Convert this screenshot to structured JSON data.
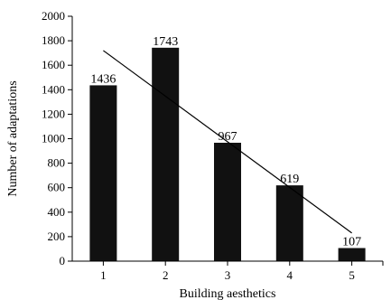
{
  "chart_data": {
    "type": "bar",
    "categories": [
      "1",
      "2",
      "3",
      "4",
      "5"
    ],
    "values": [
      1436,
      1743,
      967,
      619,
      107
    ],
    "data_labels": [
      "1436",
      "1743",
      "967",
      "619",
      "107"
    ],
    "xlabel": "Building aesthetics",
    "ylabel": "Number of adaptations",
    "ylim": [
      0,
      2000
    ],
    "yticks": [
      "0",
      "200",
      "400",
      "600",
      "800",
      "1000",
      "1200",
      "1400",
      "1600",
      "1800",
      "2000"
    ],
    "trendline": {
      "type": "linear",
      "from": {
        "x": 1,
        "y": 1720
      },
      "to": {
        "x": 5,
        "y": 230
      }
    },
    "bar_color": "#111111",
    "grid": false,
    "legend": "none"
  }
}
